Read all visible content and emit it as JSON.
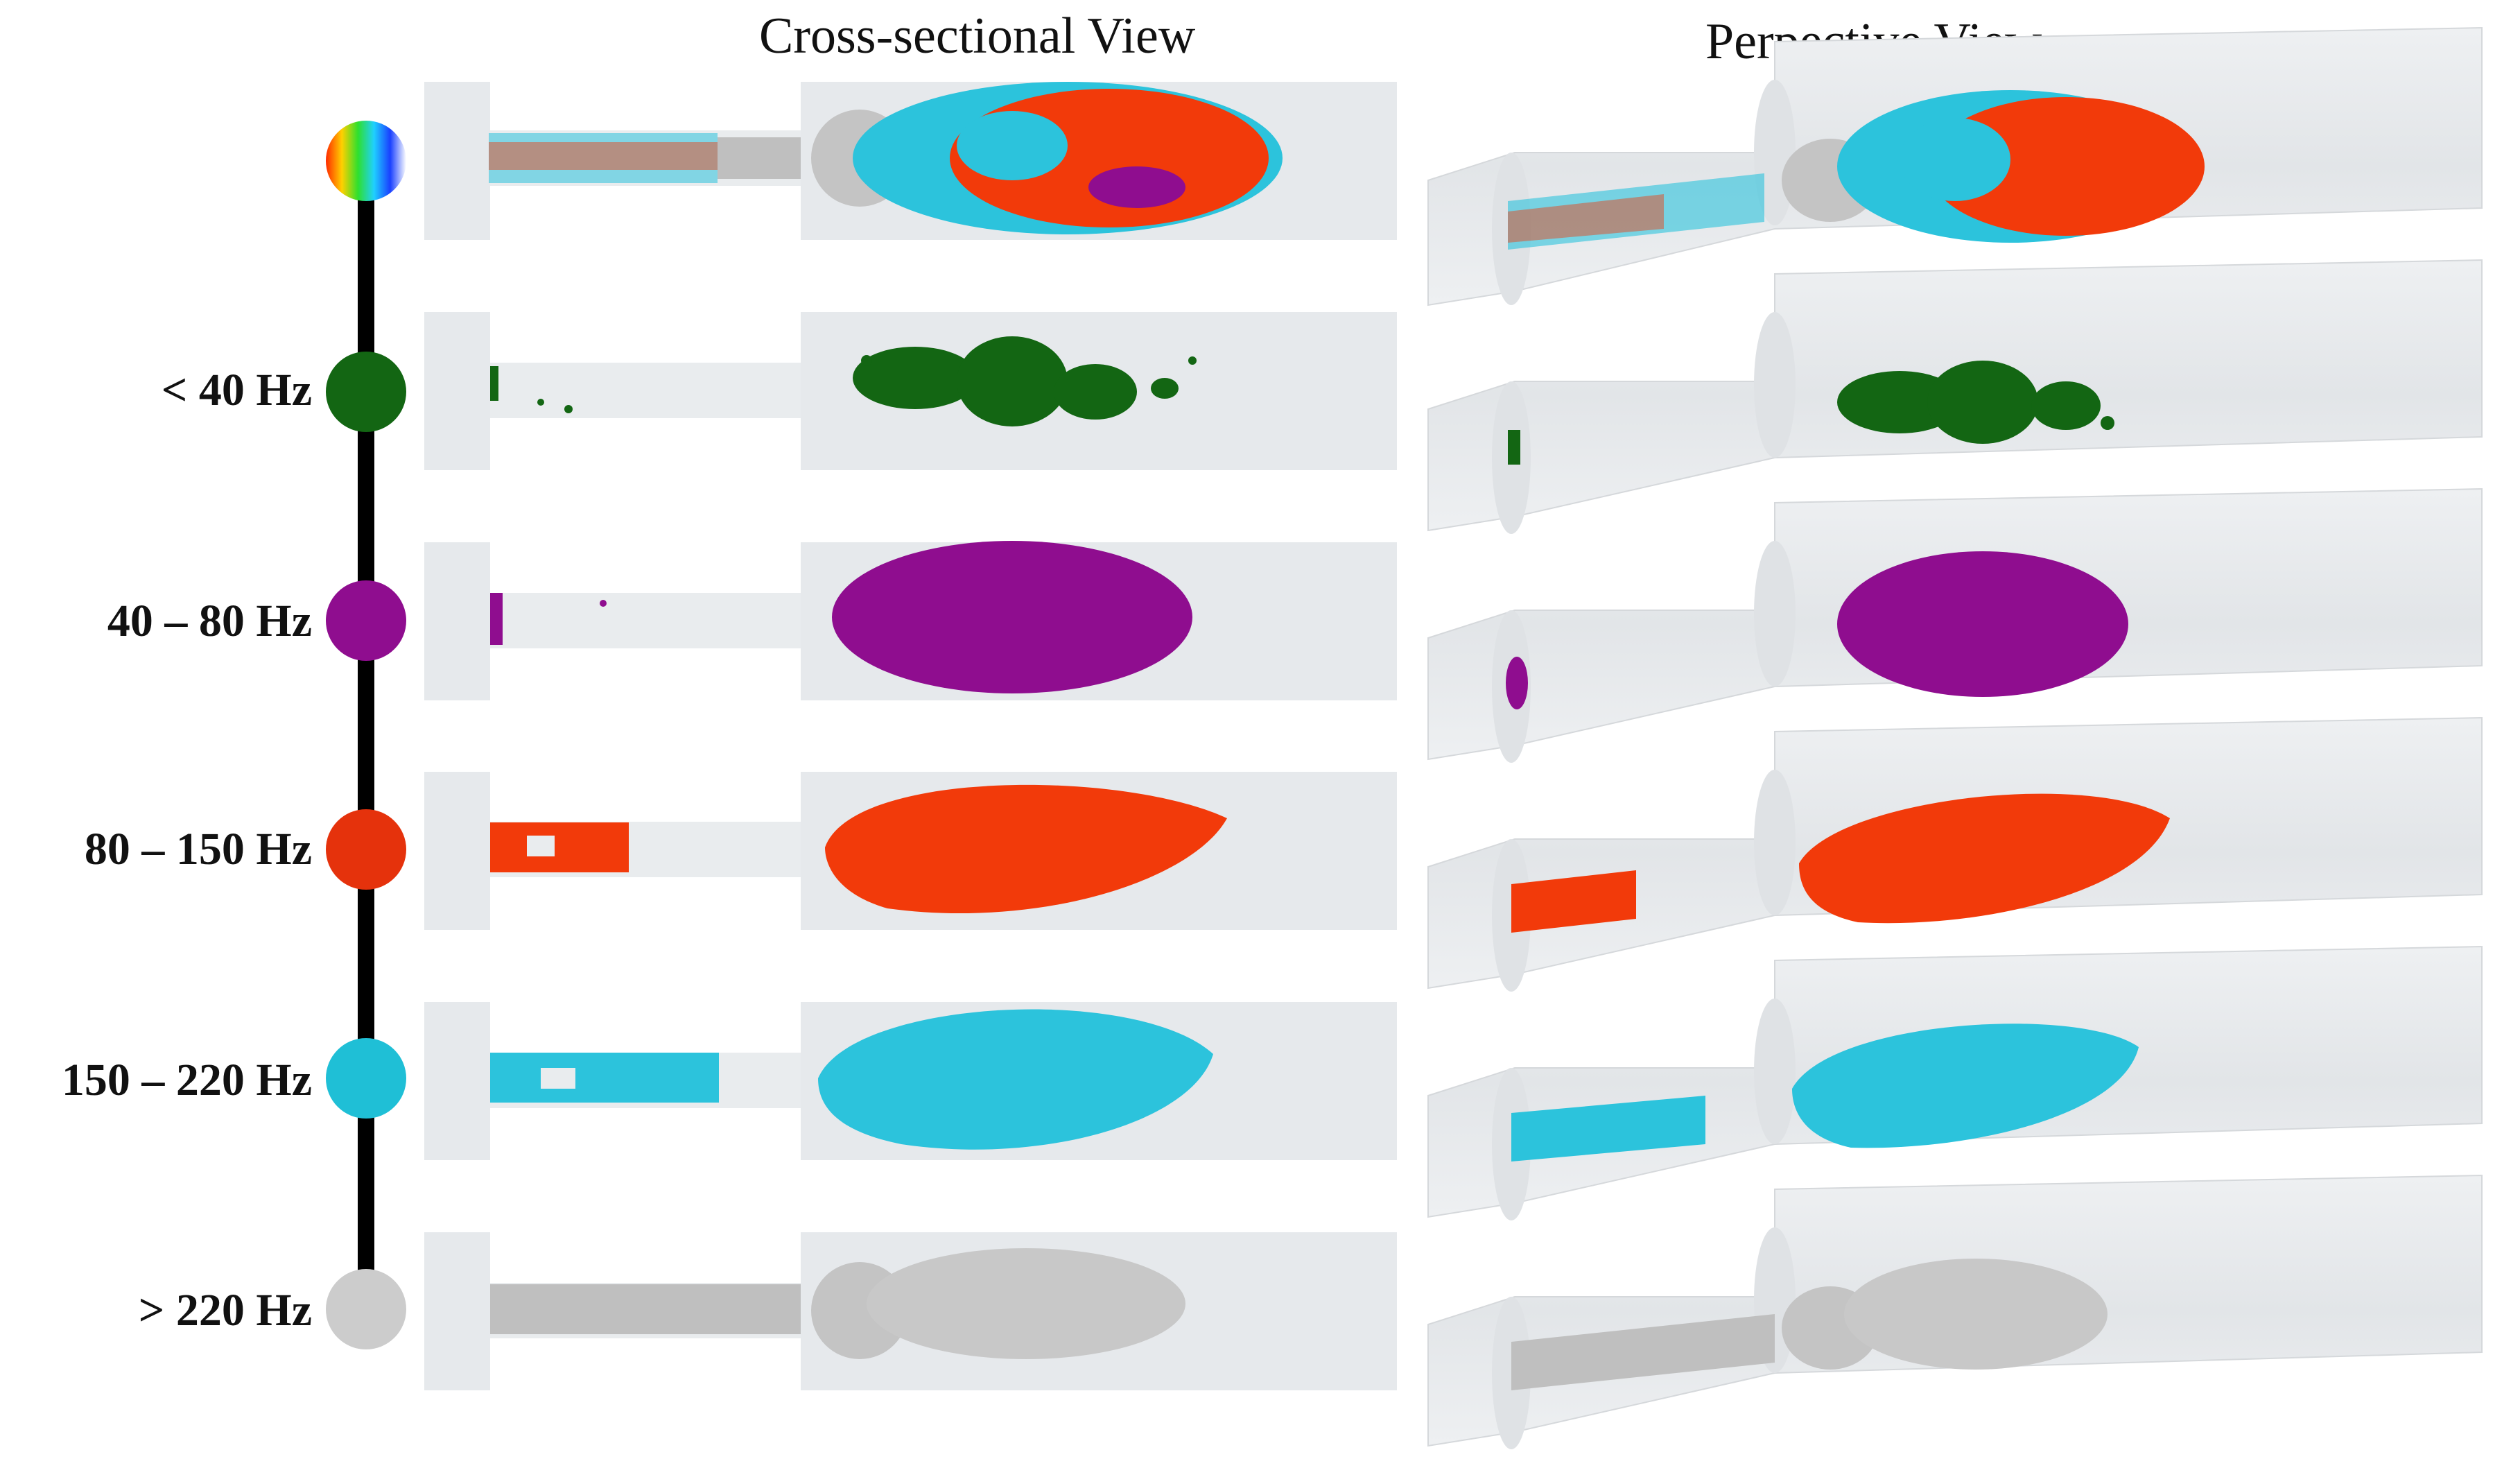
{
  "titles": {
    "cross_sectional": "Cross-sectional View",
    "perspective": "Perpective View"
  },
  "bands": [
    {
      "label": "",
      "color": "#multicolor",
      "icon": "rainbow-circle-icon"
    },
    {
      "label": "< 40 Hz",
      "color": "#136613",
      "icon": "green-circle-icon"
    },
    {
      "label": "40 – 80 Hz",
      "color": "#8f0d8f",
      "icon": "purple-circle-icon"
    },
    {
      "label": "80 – 150 Hz",
      "color": "#e5320c",
      "icon": "orange-circle-icon"
    },
    {
      "label": "150 – 220 Hz",
      "color": "#1fbfd6",
      "icon": "cyan-circle-icon"
    },
    {
      "label": "> 220 Hz",
      "color": "#cccccc",
      "icon": "gray-circle-icon"
    }
  ],
  "render_colors": {
    "low": "#136613",
    "mid_low": "#8f0d8f",
    "mid_high": "#f23a0a",
    "high": "#2cc3dc",
    "very_high": "#bfbfbf",
    "duct": "#e6e9ec"
  }
}
